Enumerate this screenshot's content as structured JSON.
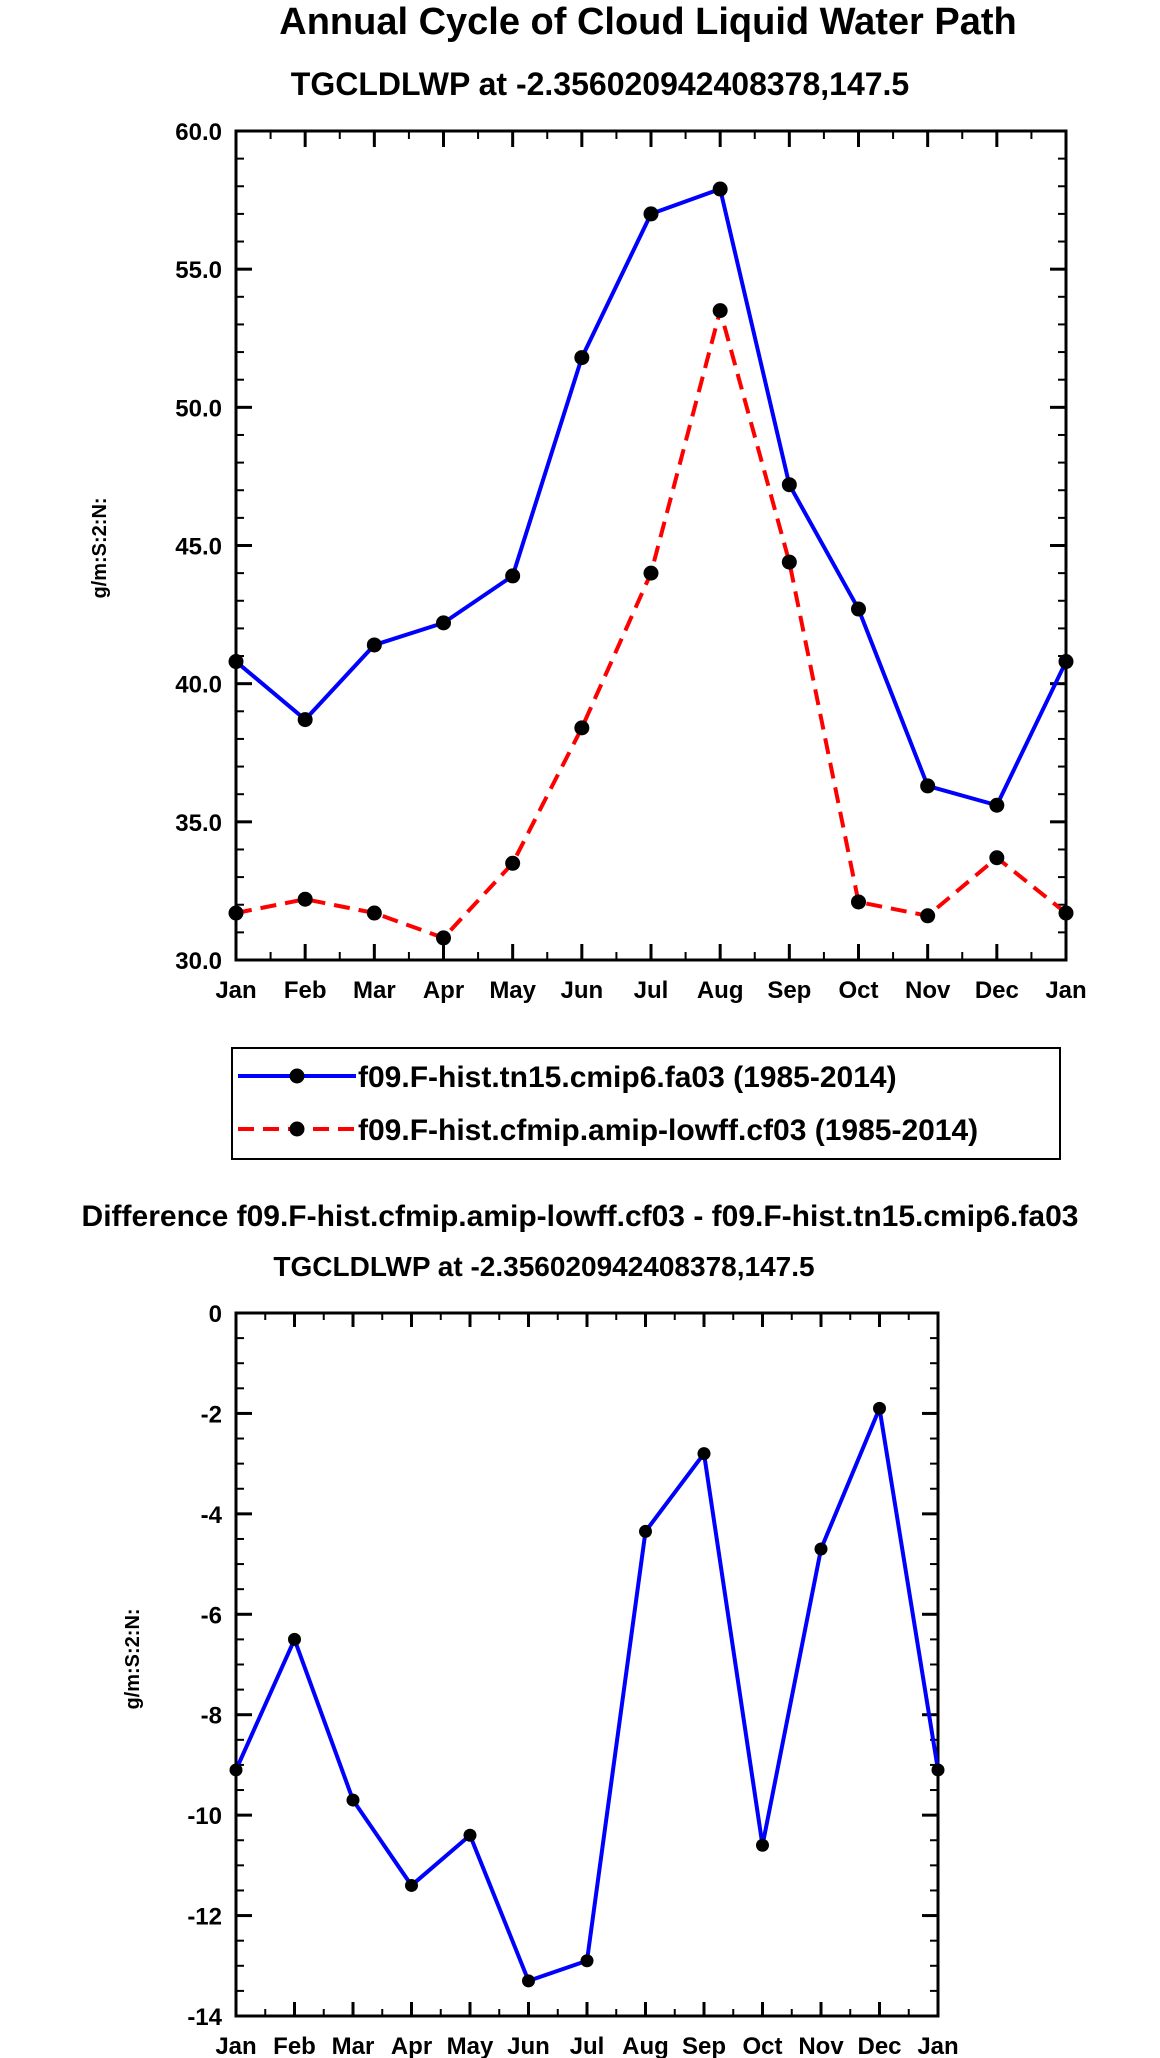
{
  "chart_data": [
    {
      "type": "line",
      "title": "Annual Cycle of Cloud Liquid Water Path",
      "subtitle": "TGCLDLWP at -2.356020942408378,147.5",
      "ylabel": "g/m:S:2:N:",
      "xlabel": "",
      "categories": [
        "Jan",
        "Feb",
        "Mar",
        "Apr",
        "May",
        "Jun",
        "Jul",
        "Aug",
        "Sep",
        "Oct",
        "Nov",
        "Dec",
        "Jan"
      ],
      "ylim": [
        30,
        60
      ],
      "yticks": [
        "30.0",
        "35.0",
        "40.0",
        "45.0",
        "50.0",
        "55.0",
        "60.0"
      ],
      "series": [
        {
          "name": "f09.F-hist.tn15.cmip6.fa03 (1985-2014)",
          "color": "#0000ff",
          "dash": "solid",
          "values": [
            40.8,
            38.7,
            41.4,
            42.2,
            43.9,
            51.8,
            57.0,
            57.9,
            47.2,
            42.7,
            36.3,
            35.6,
            40.8
          ]
        },
        {
          "name": "f09.F-hist.cfmip.amip-lowff.cf03 (1985-2014)",
          "color": "#ff0000",
          "dash": "dashed",
          "values": [
            31.7,
            32.2,
            31.7,
            30.8,
            33.5,
            38.4,
            44.0,
            53.5,
            44.4,
            32.1,
            31.6,
            33.7,
            31.7
          ]
        }
      ],
      "legend_position": "bottom"
    },
    {
      "type": "line",
      "title": "Difference f09.F-hist.cfmip.amip-lowff.cf03 - f09.F-hist.tn15.cmip6.fa03",
      "subtitle": "TGCLDLWP at -2.356020942408378,147.5",
      "ylabel": "g/m:S:2:N:",
      "xlabel": "",
      "categories": [
        "Jan",
        "Feb",
        "Mar",
        "Apr",
        "May",
        "Jun",
        "Jul",
        "Aug",
        "Sep",
        "Oct",
        "Nov",
        "Dec",
        "Jan"
      ],
      "ylim": [
        -14,
        0
      ],
      "yticks": [
        "-14",
        "-12",
        "-10",
        "-8",
        "-6",
        "-4",
        "-2",
        "0"
      ],
      "series": [
        {
          "name": "difference",
          "color": "#0000ff",
          "dash": "solid",
          "values": [
            -9.1,
            -6.5,
            -9.7,
            -11.4,
            -10.4,
            -13.3,
            -12.9,
            -4.35,
            -2.8,
            -10.6,
            -4.7,
            -1.9,
            -9.1
          ]
        }
      ]
    }
  ]
}
